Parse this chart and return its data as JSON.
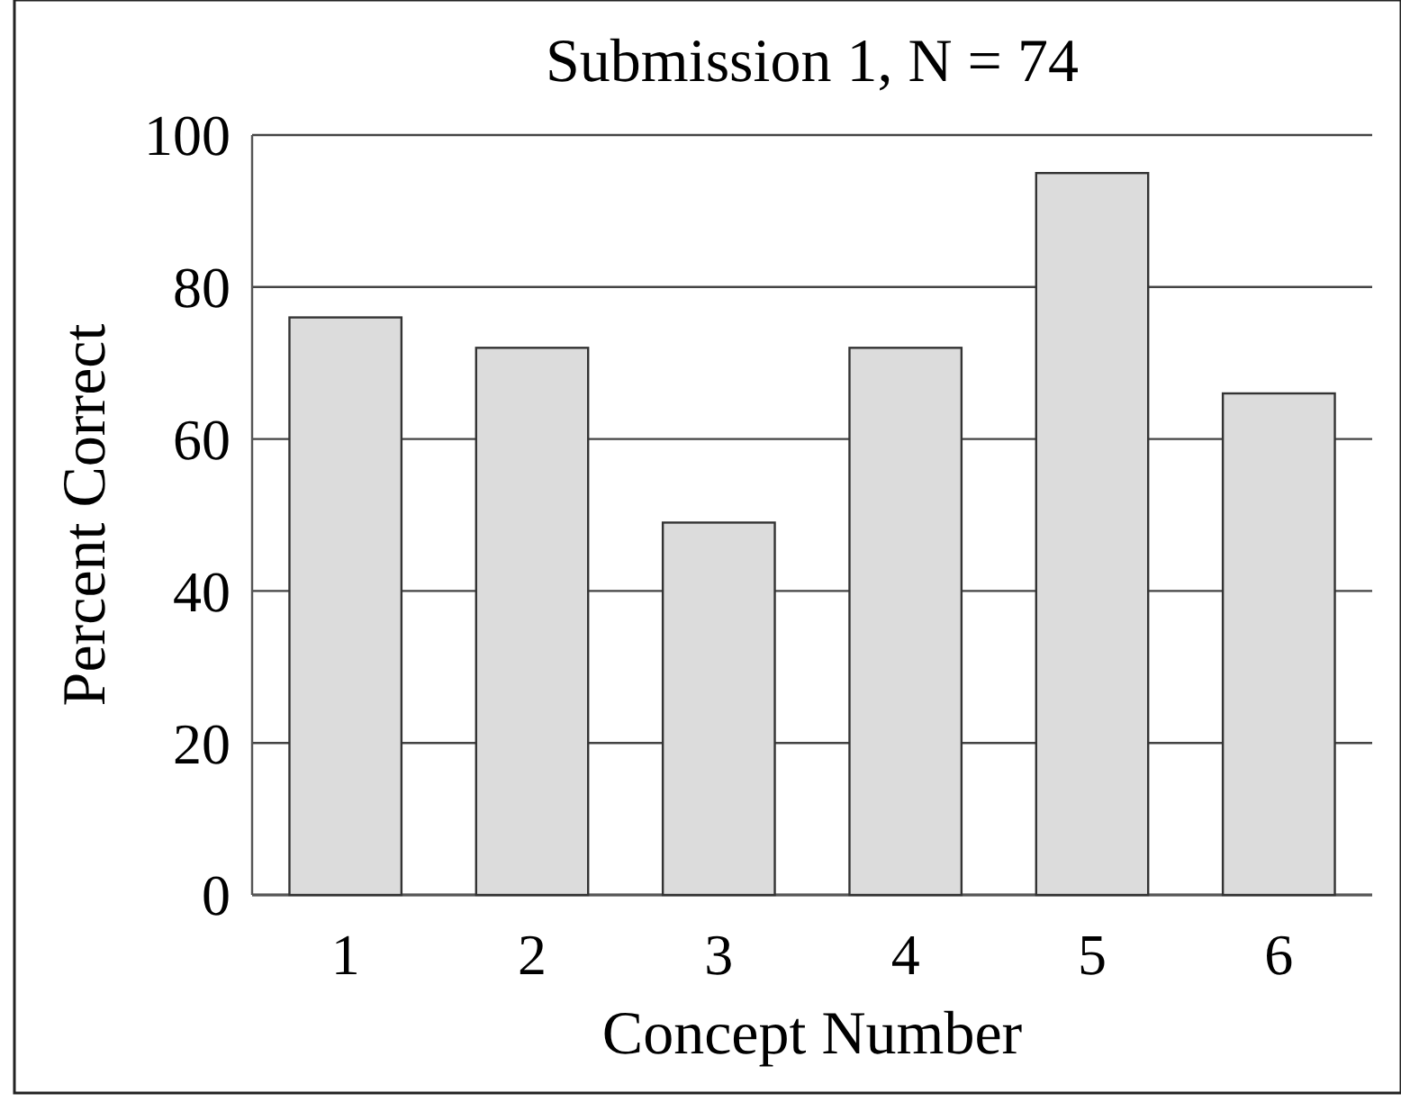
{
  "chart_data": {
    "type": "bar",
    "title": "Submission 1, N = 74",
    "xlabel": "Concept Number",
    "ylabel": "Percent Correct",
    "categories": [
      "1",
      "2",
      "3",
      "4",
      "5",
      "6"
    ],
    "values": [
      76,
      72,
      49,
      72,
      95,
      66
    ],
    "color": "#dcdcdc",
    "ylim": [
      0,
      100
    ],
    "yticks": [
      0,
      20,
      40,
      60,
      80,
      100
    ],
    "grid": "y"
  }
}
